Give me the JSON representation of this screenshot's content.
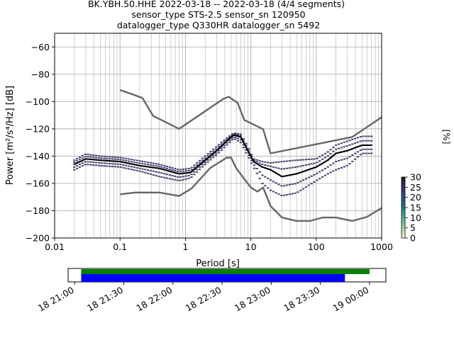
{
  "title_lines": [
    "BK.YBH.50.HHE   2022-03-18 -- 2022-03-18  (4/4 segments)",
    "sensor_type STS-2.5 sensor_sn 120950",
    "datalogger_type Q330HR datalogger_sn 5492"
  ],
  "colors": {
    "noise_model": "#666666",
    "mean_curve": "#000000",
    "pdf_density": "#2a2458",
    "timeline_green": "#008000",
    "timeline_blue": "#0000ff",
    "grid": "#b0b0b0"
  },
  "chart_data": [
    {
      "type": "line",
      "subtype": "probabilistic-power-spectral-density",
      "xlabel": "Period [s]",
      "ylabel": "Power [m²/s⁴/Hz] [dB]",
      "x_scale": "log",
      "xlim": [
        0.01,
        1000
      ],
      "ylim": [
        -200,
        -50
      ],
      "x_ticks": [
        0.01,
        0.1,
        1,
        10,
        100,
        1000
      ],
      "x_tick_labels": [
        "0.01",
        "0.1",
        "1",
        "10",
        "100",
        "1000"
      ],
      "y_ticks": [
        -200,
        -180,
        -160,
        -140,
        -120,
        -100,
        -80,
        -60
      ],
      "y_tick_labels": [
        "−200",
        "−180",
        "−160",
        "−140",
        "−120",
        "−100",
        "−80",
        "−60"
      ],
      "grid": true,
      "series": [
        {
          "role": "high-noise-model",
          "points": [
            [
              0.1,
              -91.5
            ],
            [
              0.22,
              -97.4
            ],
            [
              0.32,
              -110.5
            ],
            [
              0.8,
              -120.0
            ],
            [
              3.8,
              -98.0
            ],
            [
              4.6,
              -96.5
            ],
            [
              6.3,
              -101.0
            ],
            [
              7.9,
              -113.5
            ],
            [
              15.4,
              -120.3
            ],
            [
              20,
              -138.0
            ],
            [
              354.8,
              -126.0
            ],
            [
              1000,
              -111.5
            ]
          ]
        },
        {
          "role": "low-noise-model",
          "points": [
            [
              0.1,
              -168.0
            ],
            [
              0.17,
              -166.7
            ],
            [
              0.4,
              -166.7
            ],
            [
              0.8,
              -169.2
            ],
            [
              1.24,
              -163.7
            ],
            [
              2.4,
              -148.6
            ],
            [
              4.3,
              -141.1
            ],
            [
              5.0,
              -141.1
            ],
            [
              6.0,
              -149.0
            ],
            [
              10,
              -163.0
            ],
            [
              12.6,
              -166.0
            ],
            [
              15.4,
              -163.0
            ],
            [
              20,
              -176.6
            ],
            [
              30,
              -185.0
            ],
            [
              50,
              -187.5
            ],
            [
              80,
              -187.5
            ],
            [
              125,
              -185.0
            ],
            [
              200,
              -185.0
            ],
            [
              354.8,
              -187.5
            ],
            [
              600,
              -184.5
            ],
            [
              1000,
              -178.0
            ]
          ]
        },
        {
          "role": "mean",
          "points": [
            [
              0.02,
              -146
            ],
            [
              0.03,
              -142
            ],
            [
              0.05,
              -143
            ],
            [
              0.1,
              -144
            ],
            [
              0.2,
              -147
            ],
            [
              0.4,
              -149
            ],
            [
              0.8,
              -153
            ],
            [
              1.2,
              -152
            ],
            [
              2,
              -143
            ],
            [
              3,
              -136
            ],
            [
              4.5,
              -128
            ],
            [
              5.5,
              -124.5
            ],
            [
              7,
              -126
            ],
            [
              9,
              -136
            ],
            [
              11,
              -144
            ],
            [
              15,
              -148
            ],
            [
              20,
              -150
            ],
            [
              30,
              -155
            ],
            [
              50,
              -153
            ],
            [
              100,
              -148
            ],
            [
              150,
              -143
            ],
            [
              200,
              -138
            ],
            [
              300,
              -136
            ],
            [
              500,
              -132
            ],
            [
              700,
              -132
            ]
          ]
        },
        {
          "role": "pdf-upper-band",
          "points": [
            [
              0.02,
              -143
            ],
            [
              0.03,
              -138.5
            ],
            [
              0.05,
              -140
            ],
            [
              0.1,
              -141
            ],
            [
              0.2,
              -143.5
            ],
            [
              0.4,
              -146
            ],
            [
              0.8,
              -150
            ],
            [
              1.2,
              -149
            ],
            [
              2,
              -140
            ],
            [
              3,
              -133
            ],
            [
              4.5,
              -126
            ],
            [
              5.5,
              -123
            ],
            [
              7,
              -124
            ],
            [
              9,
              -133
            ],
            [
              11,
              -142
            ],
            [
              15,
              -144
            ],
            [
              20,
              -145
            ],
            [
              30,
              -144
            ],
            [
              50,
              -143
            ],
            [
              100,
              -142
            ],
            [
              150,
              -137
            ],
            [
              200,
              -132
            ],
            [
              300,
              -129
            ],
            [
              500,
              -125.5
            ],
            [
              700,
              -125.5
            ]
          ]
        },
        {
          "role": "pdf-lower-band",
          "points": [
            [
              0.02,
              -150
            ],
            [
              0.03,
              -146
            ],
            [
              0.05,
              -147
            ],
            [
              0.1,
              -148
            ],
            [
              0.2,
              -151
            ],
            [
              0.4,
              -155
            ],
            [
              0.8,
              -158
            ],
            [
              1.2,
              -156
            ],
            [
              2,
              -146
            ],
            [
              3,
              -139
            ],
            [
              4.5,
              -131
            ],
            [
              5.5,
              -127
            ],
            [
              7,
              -130
            ],
            [
              9,
              -140
            ],
            [
              11,
              -148
            ],
            [
              15,
              -160
            ],
            [
              20,
              -165
            ],
            [
              30,
              -169
            ],
            [
              50,
              -167
            ],
            [
              100,
              -158
            ],
            [
              150,
              -153
            ],
            [
              200,
              -150
            ],
            [
              300,
              -147
            ],
            [
              500,
              -138
            ],
            [
              700,
              -138
            ]
          ]
        }
      ]
    },
    {
      "type": "heatmap",
      "role": "colorbar",
      "label": "[%]",
      "range": [
        0,
        30
      ],
      "ticks": [
        0,
        5,
        10,
        15,
        20,
        25,
        30
      ],
      "tick_labels": [
        "0",
        "5",
        "10",
        "15",
        "20",
        "25",
        "30"
      ],
      "colormap": [
        "#fdfecc",
        "#9bd8a4",
        "#4fb08f",
        "#1f7a89",
        "#2e4f87",
        "#3a2f71",
        "#2a1037"
      ]
    },
    {
      "type": "area",
      "role": "data-availability-timeline",
      "xlim": [
        "2022-03-18T20:56",
        "2022-03-19T00:10"
      ],
      "x_ticks": [
        "2022-03-18T21:00",
        "2022-03-18T21:30",
        "2022-03-18T22:00",
        "2022-03-18T22:30",
        "2022-03-18T23:00",
        "2022-03-18T23:30",
        "2022-03-19T00:00"
      ],
      "x_tick_labels": [
        "18 21:00",
        "18 21:30",
        "18 22:00",
        "18 22:30",
        "18 23:00",
        "18 23:30",
        "19 00:00"
      ],
      "bars": [
        {
          "color": "#008000",
          "start": "2022-03-18T21:04",
          "end": "2022-03-19T00:00"
        },
        {
          "color": "#0000ff",
          "start": "2022-03-18T21:04",
          "end": "2022-03-18T23:45"
        }
      ]
    }
  ]
}
